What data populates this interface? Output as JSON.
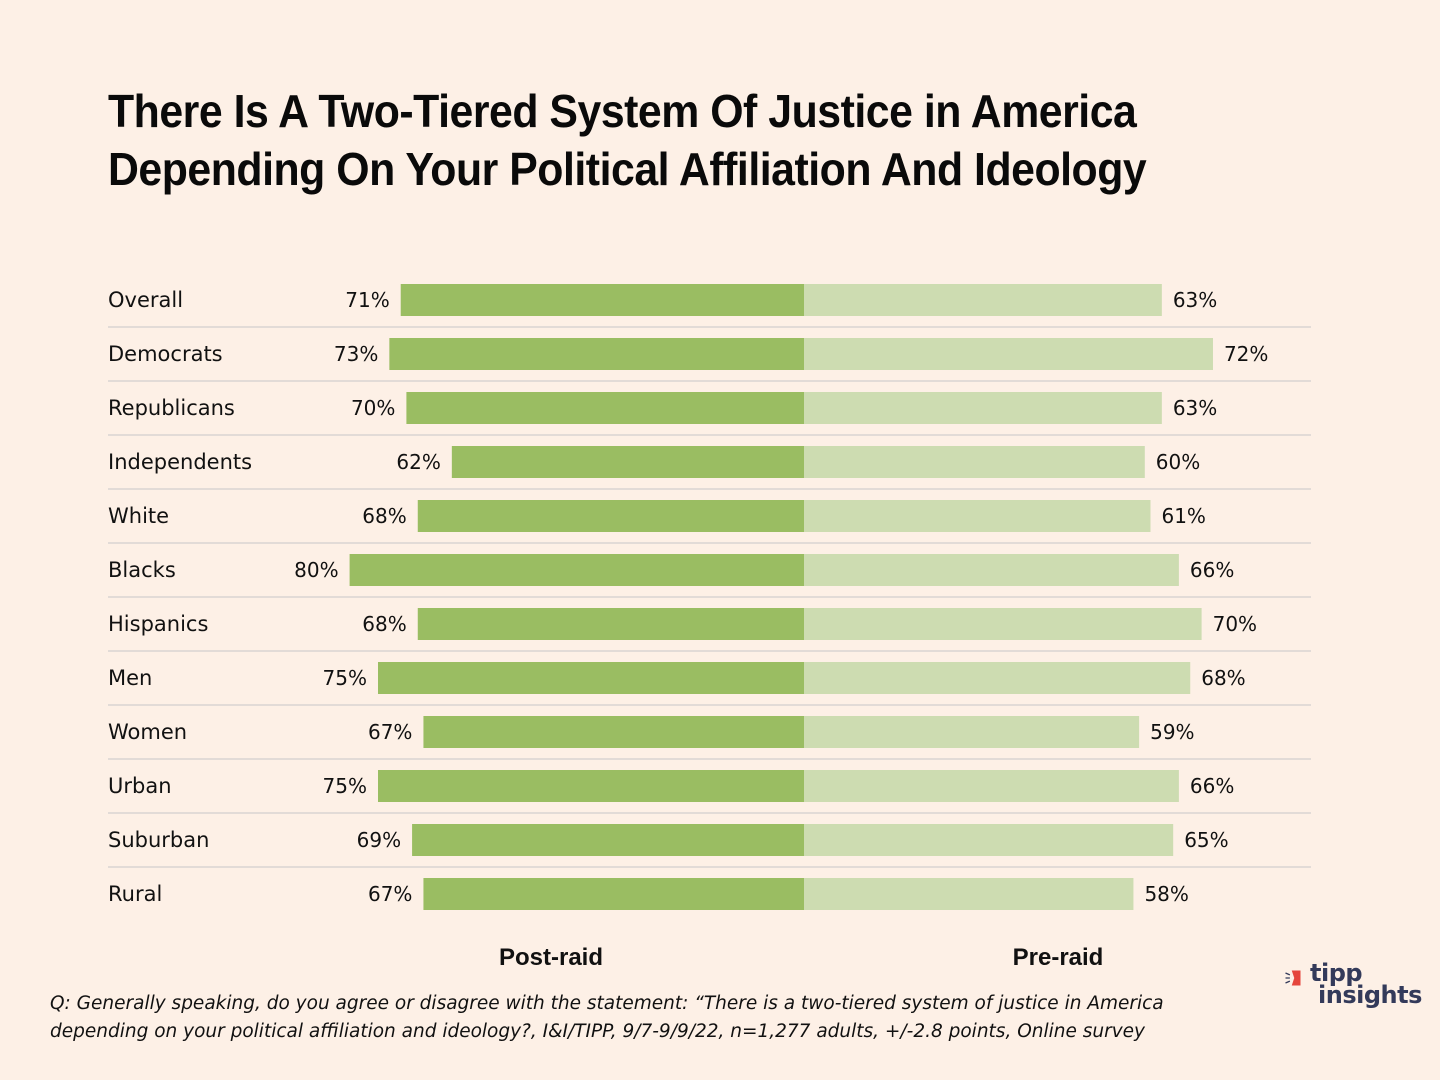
{
  "title_lines": [
    "There Is A Two-Tiered System Of Justice in America",
    "Depending On Your Political Affiliation And Ideology"
  ],
  "colors": {
    "post_raid": "#9abd62",
    "pre_raid": "#cddcb1",
    "background": "#fdf0e6",
    "gridline": "#d9d4d2",
    "logo_text": "#333a5a",
    "logo_accent": "#e5453c"
  },
  "chart_data": {
    "type": "bar",
    "orientation": "horizontal-diverging",
    "title": "There Is A Two-Tiered System Of Justice in America Depending On Your Political Affiliation And Ideology",
    "categories": [
      "Overall",
      "Democrats",
      "Republicans",
      "Independents",
      "White",
      "Blacks",
      "Hispanics",
      "Men",
      "Women",
      "Urban",
      "Suburban",
      "Rural"
    ],
    "series": [
      {
        "name": "Post-raid",
        "side": "left",
        "values": [
          71,
          73,
          70,
          62,
          68,
          80,
          68,
          75,
          67,
          75,
          69,
          67
        ]
      },
      {
        "name": "Pre-raid",
        "side": "right",
        "values": [
          63,
          72,
          63,
          60,
          61,
          66,
          70,
          68,
          59,
          66,
          65,
          58
        ]
      }
    ],
    "value_format": "{v}%",
    "xlabel": "",
    "ylabel": "",
    "xlim": [
      0,
      100
    ],
    "legend": [
      "Post-raid",
      "Pre-raid"
    ],
    "legend_position": "bottom",
    "grid": true
  },
  "footnote_lines": [
    "Q: Generally speaking, do you agree or disagree with the statement: “There is a two-tiered system of  justice in America",
    "depending on your political affiliation and ideology?, I&I/TIPP, 9/7-9/9/22, n=1,277 adults, +/-2.8 points, Online survey"
  ],
  "logo": {
    "line1": "tipp",
    "line2": "insights",
    "icon": "speaker-flag-icon"
  }
}
